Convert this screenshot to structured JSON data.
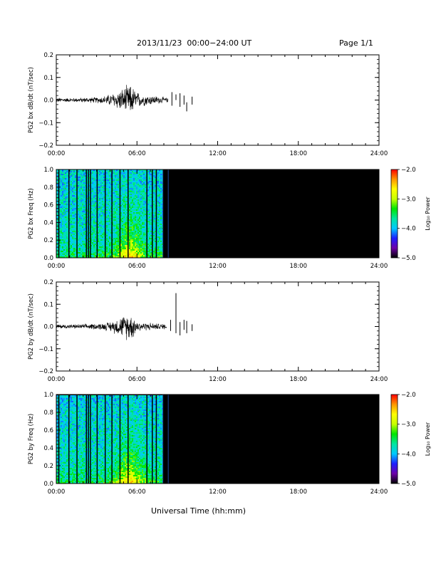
{
  "header": {
    "title": "2013/11/23  00:00−24:00 UT",
    "page": "Page 1/1"
  },
  "x_axis_label": "Universal Time (hh:mm)",
  "colors": {
    "line": "#000000",
    "background": "#000000",
    "colormap": [
      "#000000",
      "#6e00a8",
      "#1e1eff",
      "#00c8ff",
      "#00e6a0",
      "#00e600",
      "#c8ff00",
      "#ffff00",
      "#ff9600",
      "#ff0000"
    ]
  },
  "chart_data": [
    {
      "type": "line",
      "ylabel": "PG2 bx dB/dt (nT/sec)",
      "xlim": [
        0,
        24
      ],
      "xticks": [
        "00:00",
        "06:00",
        "12:00",
        "18:00",
        "24:00"
      ],
      "ylim": [
        -0.2,
        0.2
      ],
      "yticks": [
        "0.2",
        "0.1",
        "0.0",
        "−0.1",
        "−0.2"
      ],
      "series": [
        {
          "segments": [
            {
              "x": [
                0,
                1,
                2,
                3,
                3.5,
                4,
                4.5,
                5,
                5.2,
                5.5,
                5.8,
                6,
                6.5,
                7,
                7.5,
                8,
                8.3
              ],
              "amplitude": [
                0.012,
                0.01,
                0.012,
                0.015,
                0.02,
                0.03,
                0.045,
                0.06,
                0.07,
                0.075,
                0.06,
                0.04,
                0.03,
                0.025,
                0.02,
                0.015,
                0.01
              ]
            }
          ],
          "spikes": [
            [
              8.6,
              -0.025,
              0.035
            ],
            [
              8.9,
              0.0,
              0.025
            ],
            [
              9.2,
              -0.03,
              0.03
            ],
            [
              9.5,
              -0.02,
              0.02
            ],
            [
              9.7,
              -0.05,
              -0.01
            ],
            [
              10.1,
              -0.02,
              0.015
            ]
          ]
        }
      ]
    },
    {
      "type": "heatmap",
      "ylabel": "PG2 bx Freq (Hz)",
      "xlim": [
        0,
        24
      ],
      "xticks": [
        "00:00",
        "06:00",
        "12:00",
        "18:00",
        "24:00"
      ],
      "ylim": [
        0,
        1
      ],
      "yticks": [
        "1.0",
        "0.8",
        "0.6",
        "0.4",
        "0.2",
        "0.0"
      ],
      "data_end_hour": 8.0,
      "extra_data_lines": [
        7.9,
        8.3
      ],
      "gaps": [
        0.15,
        0.9,
        1.5,
        2.2,
        2.35,
        2.5,
        3.0,
        3.6,
        4.1,
        4.7,
        5.3,
        6.7,
        7.1,
        7.4
      ],
      "colorbar": {
        "label": "Log₁₀ Power",
        "range": [
          -5.0,
          -2.0
        ],
        "ticks": [
          "−2.0",
          "−3.0",
          "−4.0",
          "−5.0"
        ]
      }
    },
    {
      "type": "line",
      "ylabel": "PG2 by dB/dt (nT/sec)",
      "xlim": [
        0,
        24
      ],
      "xticks": [
        "00:00",
        "06:00",
        "12:00",
        "18:00",
        "24:00"
      ],
      "ylim": [
        -0.2,
        0.2
      ],
      "yticks": [
        "0.2",
        "0.1",
        "0.0",
        "−0.1",
        "−0.2"
      ],
      "series": [
        {
          "segments": [
            {
              "x": [
                0,
                1,
                2,
                3,
                3.5,
                4,
                4.5,
                5,
                5.2,
                5.5,
                5.8,
                6,
                6.5,
                7,
                7.5,
                8,
                8.2
              ],
              "amplitude": [
                0.012,
                0.01,
                0.012,
                0.015,
                0.018,
                0.025,
                0.04,
                0.055,
                0.065,
                0.07,
                0.05,
                0.03,
                0.02,
                0.02,
                0.015,
                0.015,
                0.01
              ]
            }
          ],
          "spikes": [
            [
              8.5,
              -0.02,
              0.03
            ],
            [
              8.9,
              -0.03,
              0.15
            ],
            [
              9.2,
              -0.04,
              0.02
            ],
            [
              9.5,
              -0.015,
              0.03
            ],
            [
              9.7,
              -0.03,
              0.025
            ],
            [
              10.1,
              -0.02,
              0.01
            ]
          ]
        }
      ]
    },
    {
      "type": "heatmap",
      "ylabel": "PG2 by Freq (Hz)",
      "xlim": [
        0,
        24
      ],
      "xticks": [
        "00:00",
        "06:00",
        "12:00",
        "18:00",
        "24:00"
      ],
      "ylim": [
        0,
        1
      ],
      "yticks": [
        "1.0",
        "0.8",
        "0.6",
        "0.4",
        "0.2",
        "0.0"
      ],
      "data_end_hour": 8.0,
      "extra_data_lines": [
        7.9,
        8.3
      ],
      "gaps": [
        0.15,
        0.9,
        1.5,
        2.2,
        2.35,
        2.5,
        3.0,
        3.6,
        4.1,
        4.7,
        5.3,
        6.7,
        7.1,
        7.4
      ],
      "colorbar": {
        "label": "Log₁₀ Power",
        "range": [
          -5.0,
          -2.0
        ],
        "ticks": [
          "−2.0",
          "−3.0",
          "−4.0",
          "−5.0"
        ]
      }
    }
  ]
}
